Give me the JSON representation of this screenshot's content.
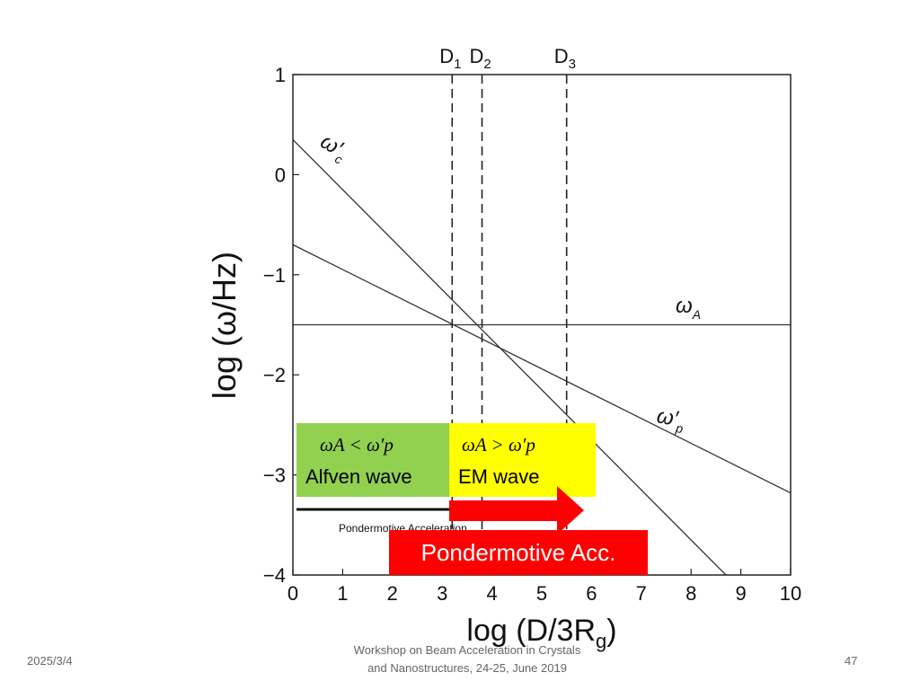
{
  "chart_data": {
    "type": "line",
    "xlabel": "log (D/3R",
    "xlabel_sub": "g",
    "xlabel_close": ")",
    "ylabel": "log (ω/Hz)",
    "xlim": [
      0,
      10
    ],
    "ylim": [
      -4,
      1
    ],
    "x_ticks": [
      "0",
      "1",
      "2",
      "3",
      "4",
      "5",
      "6",
      "7",
      "8",
      "9",
      "10"
    ],
    "y_ticks": [
      "1",
      "0",
      "−1",
      "−2",
      "−3",
      "−4"
    ],
    "series": [
      {
        "name": "ω′c",
        "x": [
          0,
          8.7
        ],
        "y": [
          0.35,
          -4.0
        ]
      },
      {
        "name": "ω′p",
        "x": [
          0,
          10
        ],
        "y": [
          -0.7,
          -3.18
        ]
      },
      {
        "name": "ωA",
        "x": [
          0,
          10
        ],
        "y": [
          -1.5,
          -1.5
        ]
      }
    ],
    "vlines": [
      {
        "label": "D",
        "sub": "1",
        "x": 3.2
      },
      {
        "label": "D",
        "sub": "2",
        "x": 3.8
      },
      {
        "label": "D",
        "sub": "3",
        "x": 5.5
      }
    ],
    "inner_label": "Pondermotive Acceleration",
    "annotations": {
      "green_formula": "ωA < ω′p",
      "green_label": "Alfven wave",
      "yellow_formula": "ωA > ω′p",
      "yellow_label": "EM wave",
      "red_label": "Pondermotive Acc."
    }
  },
  "footer": {
    "date": "2025/3/4",
    "center_line1": "Workshop on Beam Acceleration in Crystals",
    "center_line2": "and Nanostructures, 24-25, June 2019",
    "page": "47"
  },
  "colors": {
    "green": "#92d050",
    "yellow": "#ffff00",
    "red": "#ff0000"
  }
}
